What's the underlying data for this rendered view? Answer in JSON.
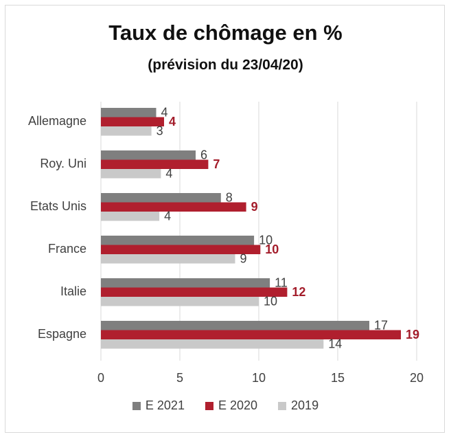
{
  "chart_data": {
    "type": "bar",
    "orientation": "horizontal",
    "title": "Taux de chômage en %",
    "subtitle": "(prévision du 23/04/20)",
    "categories": [
      "Allemagne",
      "Roy. Uni",
      "Etats Unis",
      "France",
      "Italie",
      "Espagne"
    ],
    "series": [
      {
        "name": "E 2021",
        "color": "#7f7f7f",
        "label_color": "#404040",
        "label_bold": false,
        "values": [
          4,
          6,
          8,
          10,
          11,
          17
        ],
        "bar_values": [
          3.5,
          6.0,
          7.6,
          9.7,
          10.7,
          17.0
        ]
      },
      {
        "name": "E 2020",
        "color": "#b01f2e",
        "label_color": "#a31c2a",
        "label_bold": true,
        "values": [
          4,
          7,
          9,
          10,
          12,
          19
        ],
        "bar_values": [
          4.0,
          6.8,
          9.2,
          10.1,
          11.8,
          19.0
        ]
      },
      {
        "name": "2019",
        "color": "#c9c9c9",
        "label_color": "#404040",
        "label_bold": false,
        "values": [
          3,
          4,
          4,
          9,
          10,
          14
        ],
        "bar_values": [
          3.2,
          3.8,
          3.7,
          8.5,
          10.0,
          14.1
        ]
      }
    ],
    "xlim": [
      0,
      20
    ],
    "xticks": [
      0,
      5,
      10,
      15,
      20
    ],
    "grid": true,
    "legend_position": "bottom"
  }
}
